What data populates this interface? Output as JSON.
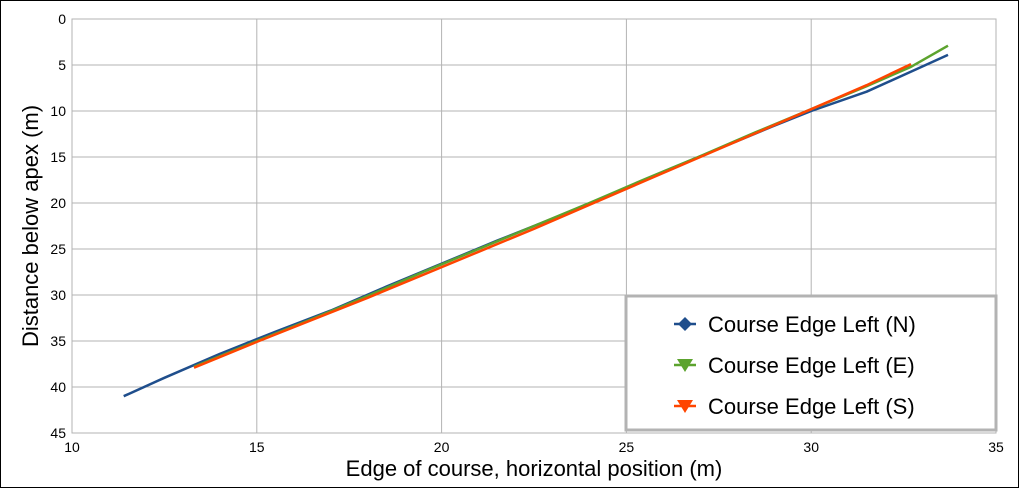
{
  "chart_data": {
    "type": "line",
    "title": "",
    "xlabel": "Edge of course, horizontal position (m)",
    "ylabel": "Distance below apex (m)",
    "xlim": [
      10,
      35
    ],
    "ylim": [
      0,
      45
    ],
    "y_inverted": true,
    "grid": true,
    "x_ticks": [
      "10",
      "15",
      "20",
      "25",
      "30",
      "35"
    ],
    "y_ticks": [
      "0",
      "5",
      "10",
      "15",
      "20",
      "25",
      "30",
      "35",
      "40",
      "45"
    ],
    "legend_position": "bottom-right",
    "series": [
      {
        "name": "Course Edge Left (N)",
        "color": "#1f4e8c",
        "marker": "diamond",
        "points": [
          [
            11.4,
            41.0
          ],
          [
            12.5,
            39.0
          ],
          [
            14.0,
            36.4
          ],
          [
            15.5,
            34.0
          ],
          [
            17.0,
            31.7
          ],
          [
            18.5,
            29.1
          ],
          [
            20.0,
            26.6
          ],
          [
            21.5,
            24.1
          ],
          [
            23.0,
            21.7
          ],
          [
            24.5,
            19.2
          ],
          [
            26.0,
            16.6
          ],
          [
            27.5,
            14.1
          ],
          [
            29.0,
            11.6
          ],
          [
            30.0,
            10.0
          ],
          [
            31.5,
            7.9
          ],
          [
            33.7,
            3.9
          ]
        ]
      },
      {
        "name": "Course Edge Left  (E)",
        "color": "#5ca32e",
        "marker": "triangle-down",
        "points": [
          [
            13.3,
            37.8
          ],
          [
            15.0,
            35.0
          ],
          [
            16.5,
            32.6
          ],
          [
            18.0,
            30.1
          ],
          [
            19.5,
            27.5
          ],
          [
            21.0,
            25.0
          ],
          [
            22.5,
            22.5
          ],
          [
            24.0,
            20.0
          ],
          [
            25.5,
            17.4
          ],
          [
            27.0,
            14.9
          ],
          [
            28.5,
            12.3
          ],
          [
            30.0,
            9.8
          ],
          [
            31.5,
            7.3
          ],
          [
            32.7,
            5.2
          ],
          [
            33.7,
            2.9
          ]
        ]
      },
      {
        "name": "Course Edge Left  (S)",
        "color": "#ff4500",
        "marker": "triangle-down",
        "points": [
          [
            13.3,
            37.9
          ],
          [
            15.0,
            35.1
          ],
          [
            16.5,
            32.7
          ],
          [
            18.0,
            30.3
          ],
          [
            19.5,
            27.8
          ],
          [
            21.0,
            25.3
          ],
          [
            22.5,
            22.8
          ],
          [
            24.0,
            20.2
          ],
          [
            25.5,
            17.6
          ],
          [
            27.0,
            15.0
          ],
          [
            28.5,
            12.4
          ],
          [
            30.0,
            9.8
          ],
          [
            31.5,
            7.2
          ],
          [
            32.7,
            4.9
          ]
        ]
      }
    ]
  }
}
